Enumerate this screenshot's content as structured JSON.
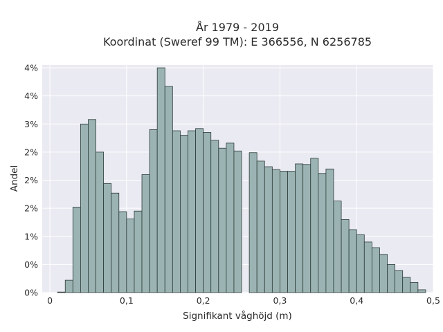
{
  "chart_data": {
    "type": "bar",
    "title": "År 1979 - 2019",
    "subtitle": "Koordinat (Sweref 99 TM): E 366556, N 6256785",
    "xlabel": "Signifikant våghöjd (m)",
    "ylabel": "Andel",
    "xlim": [
      -0.01,
      0.5
    ],
    "ylim": [
      0,
      0.0405
    ],
    "xticks": [
      0,
      0.1,
      0.2,
      0.3,
      0.4,
      0.5
    ],
    "xtick_labels": [
      "0",
      "0,1",
      "0,2",
      "0,3",
      "0,4",
      "0,5"
    ],
    "yticks": [
      0,
      0.005,
      0.01,
      0.015,
      0.02,
      0.025,
      0.03,
      0.035,
      0.04
    ],
    "ytick_labels": [
      "0%",
      "0%",
      "1%",
      "2%",
      "2%",
      "2%",
      "3%",
      "4%",
      "4%"
    ],
    "bin_width": 0.01,
    "bin_starts": [
      0.01,
      0.02,
      0.03,
      0.04,
      0.05,
      0.06,
      0.07,
      0.08,
      0.09,
      0.1,
      0.11,
      0.12,
      0.13,
      0.14,
      0.15,
      0.16,
      0.17,
      0.18,
      0.19,
      0.2,
      0.21,
      0.22,
      0.23,
      0.24,
      0.25,
      0.26,
      0.27,
      0.28,
      0.29,
      0.3,
      0.31,
      0.32,
      0.33,
      0.34,
      0.35,
      0.36,
      0.37,
      0.38,
      0.39,
      0.4,
      0.41,
      0.42,
      0.43,
      0.44,
      0.45,
      0.46,
      0.47,
      0.48
    ],
    "values": [
      0.0001,
      0.0022,
      0.0152,
      0.03,
      0.0308,
      0.025,
      0.0194,
      0.0177,
      0.0144,
      0.0131,
      0.0145,
      0.021,
      0.029,
      0.04,
      0.0367,
      0.0288,
      0.028,
      0.0288,
      0.0292,
      0.0285,
      0.0271,
      0.0257,
      0.0266,
      0.0252,
      0.0,
      0.0249,
      0.0234,
      0.0224,
      0.0219,
      0.0216,
      0.0216,
      0.0229,
      0.0228,
      0.0239,
      0.0212,
      0.022,
      0.0163,
      0.013,
      0.0112,
      0.0103,
      0.009,
      0.008,
      0.0068,
      0.005,
      0.0039,
      0.0027,
      0.0018,
      0.0005
    ],
    "bar_color": "#9bb4b3",
    "edge_color": "#2b3a38",
    "background": "#eaeaf2",
    "grid": true
  }
}
